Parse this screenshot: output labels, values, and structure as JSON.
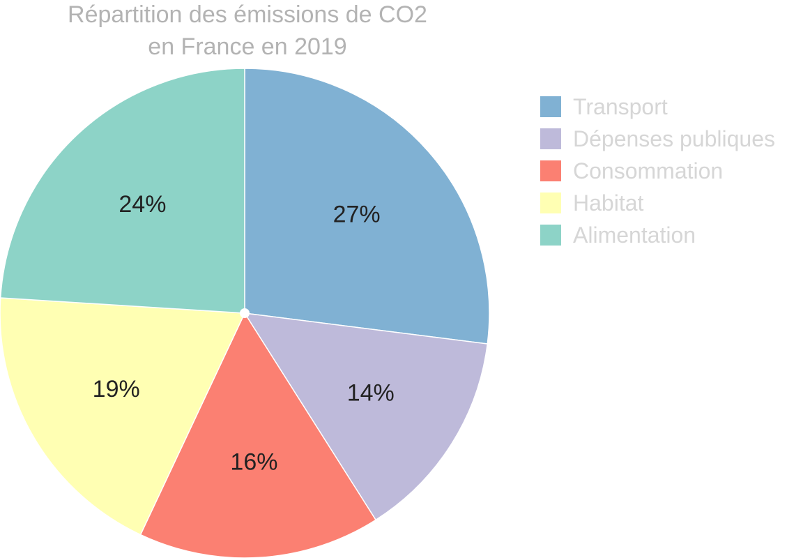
{
  "chart_data": {
    "type": "pie",
    "title_lines": [
      "Répartition des émissions de CO2",
      "en France en 2019"
    ],
    "categories": [
      "Transport",
      "Dépenses publiques",
      "Consommation",
      "Habitat",
      "Alimentation"
    ],
    "values": [
      27,
      14,
      16,
      19,
      24
    ],
    "labels": [
      "27%",
      "14%",
      "16%",
      "19%",
      "24%"
    ],
    "colors": [
      "#80b1d3",
      "#bebada",
      "#fb8072",
      "#ffffb3",
      "#8dd3c7"
    ],
    "start_angle": "12 o'clock",
    "direction": "clockwise",
    "legend_position": "right"
  }
}
